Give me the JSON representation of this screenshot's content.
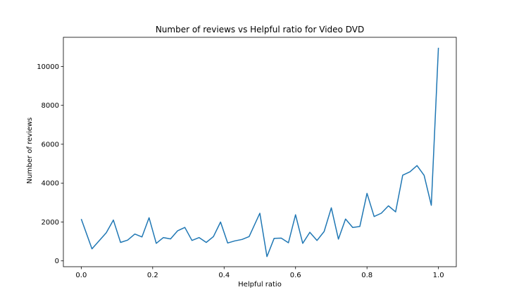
{
  "chart_data": {
    "type": "line",
    "title": "Number of reviews vs Helpful ratio for Video DVD",
    "xlabel": "Helpful ratio",
    "ylabel": "Number of reviews",
    "xlim": [
      -0.05,
      1.05
    ],
    "ylim": [
      -300,
      11500
    ],
    "xticks": [
      0.0,
      0.2,
      0.4,
      0.6,
      0.8,
      1.0
    ],
    "xtick_labels": [
      "0.0",
      "0.2",
      "0.4",
      "0.6",
      "0.8",
      "1.0"
    ],
    "yticks": [
      0,
      2000,
      4000,
      6000,
      8000,
      10000
    ],
    "ytick_labels": [
      "0",
      "2000",
      "4000",
      "6000",
      "8000",
      "10000"
    ],
    "grid": false,
    "legend": "none",
    "series": [
      {
        "color": "#1f77b4",
        "x": [
          0.0,
          0.03,
          0.07,
          0.09,
          0.11,
          0.13,
          0.15,
          0.17,
          0.19,
          0.21,
          0.23,
          0.25,
          0.27,
          0.29,
          0.31,
          0.33,
          0.35,
          0.37,
          0.39,
          0.41,
          0.43,
          0.45,
          0.47,
          0.5,
          0.52,
          0.54,
          0.56,
          0.58,
          0.6,
          0.62,
          0.64,
          0.66,
          0.68,
          0.7,
          0.72,
          0.74,
          0.76,
          0.78,
          0.8,
          0.82,
          0.84,
          0.86,
          0.88,
          0.9,
          0.92,
          0.94,
          0.96,
          0.98,
          1.0
        ],
        "y": [
          2150,
          620,
          1450,
          2100,
          950,
          1070,
          1380,
          1230,
          2220,
          900,
          1200,
          1130,
          1550,
          1720,
          1050,
          1200,
          950,
          1250,
          2000,
          920,
          1030,
          1100,
          1250,
          2450,
          220,
          1160,
          1170,
          930,
          2370,
          900,
          1470,
          1050,
          1510,
          2730,
          1120,
          2150,
          1720,
          1770,
          3470,
          2280,
          2450,
          2830,
          2520,
          4410,
          4580,
          4900,
          4400,
          2860,
          10960
        ]
      }
    ]
  }
}
